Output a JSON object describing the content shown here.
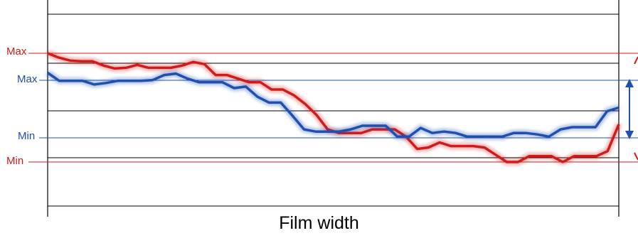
{
  "chart_data": {
    "type": "line",
    "xlabel": "Film width",
    "colors": {
      "red": "#d11b1b",
      "blue": "#1f50b0",
      "grid": "#000000"
    },
    "reference_lines": [
      {
        "label": "Max",
        "color": "red"
      },
      {
        "label": "Max",
        "color": "blue"
      },
      {
        "label": "Min",
        "color": "blue"
      },
      {
        "label": "Min",
        "color": "red"
      }
    ],
    "range_arrows": [
      "blue-range-arrow",
      "red-range-arrow"
    ],
    "series": [
      {
        "color": "red",
        "values": [
          100,
          94,
          90,
          89,
          89,
          83,
          79,
          80,
          84,
          80,
          80,
          80,
          83,
          88,
          85,
          70,
          70,
          65,
          60,
          60,
          50,
          50,
          42,
          30,
          15,
          -5,
          -10,
          -10,
          -10,
          -5,
          -5,
          -5,
          -15,
          -32,
          -30,
          -23,
          -28,
          -28,
          -28,
          -30,
          -40,
          -50,
          -50,
          -42,
          -42,
          -42,
          -50,
          -42,
          -42,
          -42,
          -35,
          2
        ]
      },
      {
        "color": "blue",
        "values": [
          73,
          62,
          62,
          62,
          57,
          59,
          62,
          62,
          62,
          63,
          70,
          72,
          65,
          60,
          60,
          60,
          52,
          54,
          40,
          32,
          32,
          14,
          -5,
          -8,
          -8,
          -8,
          -5,
          0,
          0,
          0,
          -15,
          -15,
          -3,
          -10,
          -8,
          -10,
          -15,
          -15,
          -15,
          -15,
          -10,
          -10,
          -12,
          -15,
          -5,
          -2,
          -2,
          -2,
          20,
          25
        ]
      }
    ]
  }
}
